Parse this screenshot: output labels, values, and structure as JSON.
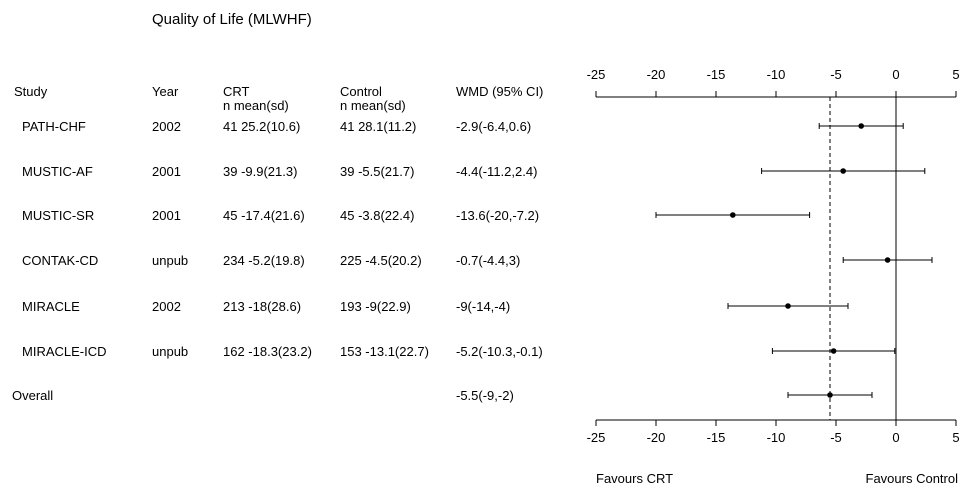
{
  "title": "Quality of Life (MLWHF)",
  "headers": {
    "study": "Study",
    "year": "Year",
    "crt": "CRT",
    "crt_sub": "n  mean(sd)",
    "control": "Control",
    "control_sub": "n  mean(sd)",
    "wmd": "WMD (95% CI)"
  },
  "rows": [
    {
      "study": "PATH-CHF",
      "year": "2002",
      "crt": "41  25.2(10.6)",
      "control": "41  28.1(11.2)",
      "wmd": "-2.9(-6.4,0.6)"
    },
    {
      "study": "MUSTIC-AF",
      "year": "2001",
      "crt": "39  -9.9(21.3)",
      "control": "39  -5.5(21.7)",
      "wmd": "-4.4(-11.2,2.4)"
    },
    {
      "study": "MUSTIC-SR",
      "year": "2001",
      "crt": "45  -17.4(21.6)",
      "control": "45  -3.8(22.4)",
      "wmd": "-13.6(-20,-7.2)"
    },
    {
      "study": "CONTAK-CD",
      "year": "unpub",
      "crt": "234  -5.2(19.8)",
      "control": "225  -4.5(20.2)",
      "wmd": "-0.7(-4.4,3)"
    },
    {
      "study": "MIRACLE",
      "year": "2002",
      "crt": "213  -18(28.6)",
      "control": "193  -9(22.9)",
      "wmd": "-9(-14,-4)"
    },
    {
      "study": "MIRACLE-ICD",
      "year": "unpub",
      "crt": "162  -18.3(23.2)",
      "control": "153  -13.1(22.7)",
      "wmd": "-5.2(-10.3,-0.1)"
    }
  ],
  "overall": {
    "label": "Overall",
    "wmd": "-5.5(-9,-2)"
  },
  "favours": {
    "left": "Favours CRT",
    "right": "Favours Control"
  },
  "chart_data": {
    "type": "forest",
    "title": "Quality of Life (MLWHF)",
    "x_ticks": [
      -25,
      -20,
      -15,
      -10,
      -5,
      0,
      5
    ],
    "xlim": [
      -25,
      5
    ],
    "no_effect_line": 0,
    "overall_line": -5.5,
    "studies": [
      {
        "name": "PATH-CHF",
        "estimate": -2.9,
        "lower": -6.4,
        "upper": 0.6
      },
      {
        "name": "MUSTIC-AF",
        "estimate": -4.4,
        "lower": -11.2,
        "upper": 2.4
      },
      {
        "name": "MUSTIC-SR",
        "estimate": -13.6,
        "lower": -20,
        "upper": -7.2
      },
      {
        "name": "CONTAK-CD",
        "estimate": -0.7,
        "lower": -4.4,
        "upper": 3
      },
      {
        "name": "MIRACLE",
        "estimate": -9,
        "lower": -14,
        "upper": -4
      },
      {
        "name": "MIRACLE-ICD",
        "estimate": -5.2,
        "lower": -10.3,
        "upper": -0.1
      }
    ],
    "overall": {
      "name": "Overall",
      "estimate": -5.5,
      "lower": -9,
      "upper": -2
    }
  }
}
